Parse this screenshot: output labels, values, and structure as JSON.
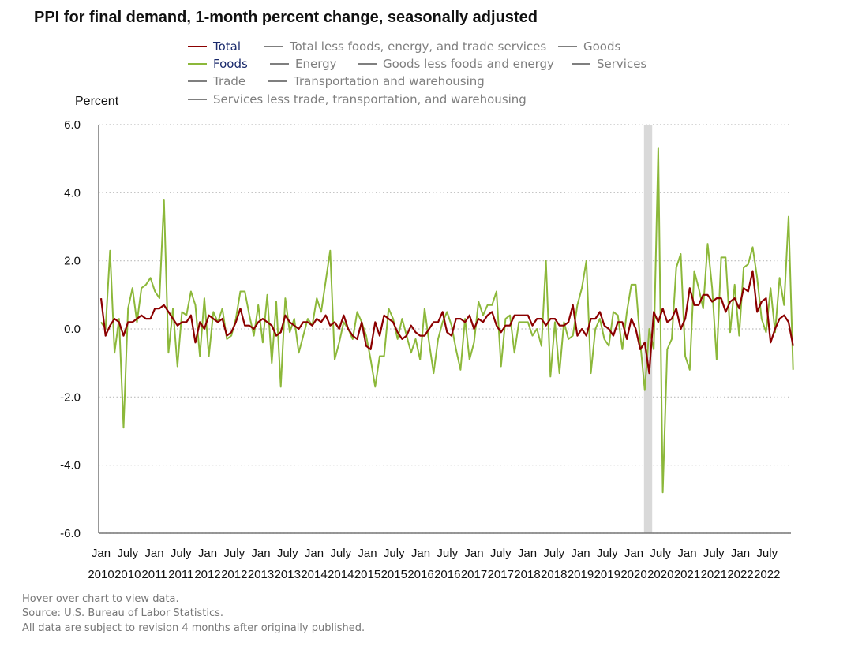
{
  "chart_data": {
    "type": "line",
    "title": "PPI for final demand, 1-month percent change, seasonally adjusted",
    "ylabel": "Percent",
    "ylim": [
      -6.0,
      6.0
    ],
    "yticks": [
      "6.0",
      "4.0",
      "2.0",
      "0.0",
      "-2.0",
      "-4.0",
      "-6.0"
    ],
    "xtick_labels": [
      {
        "month": "Jan",
        "year": "2010"
      },
      {
        "month": "July",
        "year": "2010"
      },
      {
        "month": "Jan",
        "year": "2011"
      },
      {
        "month": "July",
        "year": "2011"
      },
      {
        "month": "Jan",
        "year": "2012"
      },
      {
        "month": "July",
        "year": "2012"
      },
      {
        "month": "Jan",
        "year": "2013"
      },
      {
        "month": "July",
        "year": "2013"
      },
      {
        "month": "Jan",
        "year": "2014"
      },
      {
        "month": "July",
        "year": "2014"
      },
      {
        "month": "Jan",
        "year": "2015"
      },
      {
        "month": "July",
        "year": "2015"
      },
      {
        "month": "Jan",
        "year": "2016"
      },
      {
        "month": "July",
        "year": "2016"
      },
      {
        "month": "Jan",
        "year": "2017"
      },
      {
        "month": "July",
        "year": "2017"
      },
      {
        "month": "Jan",
        "year": "2018"
      },
      {
        "month": "July",
        "year": "2018"
      },
      {
        "month": "Jan",
        "year": "2019"
      },
      {
        "month": "July",
        "year": "2019"
      },
      {
        "month": "Jan",
        "year": "2020"
      },
      {
        "month": "July",
        "year": "2020"
      },
      {
        "month": "Jan",
        "year": "2021"
      },
      {
        "month": "July",
        "year": "2021"
      },
      {
        "month": "Jan",
        "year": "2022"
      },
      {
        "month": "July",
        "year": "2022"
      }
    ],
    "x_start": "2010-01",
    "x_end": "2022-10",
    "recession": {
      "start": "2020-02",
      "end": "2020-04"
    },
    "grid": "horizontal dotted",
    "legend": [
      {
        "name": "Total",
        "color": "#8b0000",
        "active": true
      },
      {
        "name": "Total less foods, energy, and trade services",
        "color": "#7f7f7f",
        "active": false
      },
      {
        "name": "Goods",
        "color": "#7f7f7f",
        "active": false
      },
      {
        "name": "Foods",
        "color": "#8cb83a",
        "active": true
      },
      {
        "name": "Energy",
        "color": "#7f7f7f",
        "active": false
      },
      {
        "name": "Goods less foods and energy",
        "color": "#7f7f7f",
        "active": false
      },
      {
        "name": "Services",
        "color": "#7f7f7f",
        "active": false
      },
      {
        "name": "Trade",
        "color": "#7f7f7f",
        "active": false
      },
      {
        "name": "Transportation and warehousing",
        "color": "#7f7f7f",
        "active": false
      },
      {
        "name": "Services less trade, transportation, and warehousing",
        "color": "#7f7f7f",
        "active": false
      }
    ],
    "series": [
      {
        "name": "Total",
        "color": "#8b0000",
        "values": [
          0.9,
          -0.2,
          0.1,
          0.3,
          0.2,
          -0.2,
          0.2,
          0.2,
          0.3,
          0.4,
          0.3,
          0.3,
          0.6,
          0.6,
          0.7,
          0.5,
          0.3,
          0.1,
          0.2,
          0.2,
          0.4,
          -0.4,
          0.2,
          0.0,
          0.4,
          0.3,
          0.2,
          0.3,
          -0.2,
          -0.1,
          0.2,
          0.6,
          0.1,
          0.1,
          0.0,
          0.2,
          0.3,
          0.2,
          0.1,
          -0.2,
          -0.1,
          0.4,
          0.2,
          0.1,
          0.0,
          0.2,
          0.2,
          0.1,
          0.3,
          0.2,
          0.4,
          0.1,
          0.2,
          0.0,
          0.4,
          0.0,
          -0.2,
          -0.3,
          0.2,
          -0.5,
          -0.6,
          0.2,
          -0.2,
          0.4,
          0.3,
          0.2,
          -0.1,
          -0.3,
          -0.2,
          0.1,
          -0.1,
          -0.2,
          -0.2,
          0.0,
          0.2,
          0.2,
          0.5,
          -0.1,
          -0.2,
          0.3,
          0.3,
          0.2,
          0.4,
          0.0,
          0.3,
          0.2,
          0.4,
          0.5,
          0.1,
          -0.1,
          0.1,
          0.1,
          0.4,
          0.4,
          0.4,
          0.4,
          0.1,
          0.3,
          0.3,
          0.1,
          0.3,
          0.3,
          0.1,
          0.1,
          0.2,
          0.7,
          -0.2,
          0.0,
          -0.2,
          0.3,
          0.3,
          0.5,
          0.1,
          0.0,
          -0.2,
          0.2,
          0.2,
          -0.3,
          0.3,
          0.0,
          -0.6,
          -0.4,
          -1.3,
          0.5,
          0.2,
          0.6,
          0.2,
          0.3,
          0.6,
          0.0,
          0.3,
          1.2,
          0.7,
          0.7,
          1.0,
          1.0,
          0.8,
          0.9,
          0.9,
          0.5,
          0.8,
          0.9,
          0.6,
          1.2,
          1.1,
          1.7,
          0.5,
          0.8,
          0.9,
          -0.4,
          0.0,
          0.3,
          0.4,
          0.2,
          -0.5
        ]
      },
      {
        "name": "Foods",
        "color": "#8cb83a",
        "values": [
          0.2,
          0.0,
          2.3,
          -0.7,
          0.3,
          -2.9,
          0.6,
          1.2,
          0.2,
          1.2,
          1.3,
          1.5,
          1.1,
          0.9,
          3.8,
          -0.7,
          0.6,
          -1.1,
          0.5,
          0.4,
          1.1,
          0.7,
          -0.8,
          0.9,
          -0.8,
          0.5,
          0.2,
          0.6,
          -0.3,
          -0.2,
          0.3,
          1.1,
          1.1,
          0.4,
          -0.2,
          0.7,
          -0.4,
          1.0,
          -1.0,
          0.8,
          -1.7,
          0.9,
          -0.1,
          0.3,
          -0.7,
          -0.2,
          0.3,
          0.1,
          0.9,
          0.5,
          1.4,
          2.3,
          -0.9,
          -0.4,
          0.2,
          0.0,
          -0.3,
          0.5,
          0.2,
          -0.2,
          -0.9,
          -1.7,
          -0.8,
          -0.8,
          0.6,
          0.3,
          -0.3,
          0.3,
          -0.2,
          -0.7,
          -0.3,
          -0.9,
          0.6,
          -0.4,
          -1.3,
          -0.3,
          0.2,
          0.5,
          0.1,
          -0.6,
          -1.2,
          0.3,
          -0.9,
          -0.4,
          0.8,
          0.4,
          0.7,
          0.7,
          1.1,
          -1.1,
          0.3,
          0.4,
          -0.7,
          0.2,
          0.2,
          0.2,
          -0.2,
          0.0,
          -0.5,
          2.0,
          -1.4,
          0.2,
          -1.3,
          0.2,
          -0.3,
          -0.2,
          0.7,
          1.2,
          2.0,
          -1.3,
          0.0,
          0.3,
          -0.3,
          -0.5,
          0.5,
          0.4,
          -0.6,
          0.5,
          1.3,
          1.3,
          -0.4,
          -1.8,
          0.0,
          -0.6,
          5.3,
          -4.8,
          -0.6,
          -0.3,
          1.8,
          2.2,
          -0.8,
          -1.2,
          1.7,
          1.2,
          0.6,
          2.5,
          1.2,
          -0.9,
          2.1,
          2.1,
          -0.1,
          1.3,
          -0.2,
          1.8,
          1.9,
          2.4,
          1.5,
          0.3,
          -0.1,
          1.2,
          -0.1,
          1.5,
          0.7,
          3.3,
          -1.2
        ]
      }
    ]
  },
  "footnotes": [
    "Hover over chart to view data.",
    "Source: U.S. Bureau of Labor Statistics.",
    "All data are subject to revision 4 months after originally published."
  ]
}
